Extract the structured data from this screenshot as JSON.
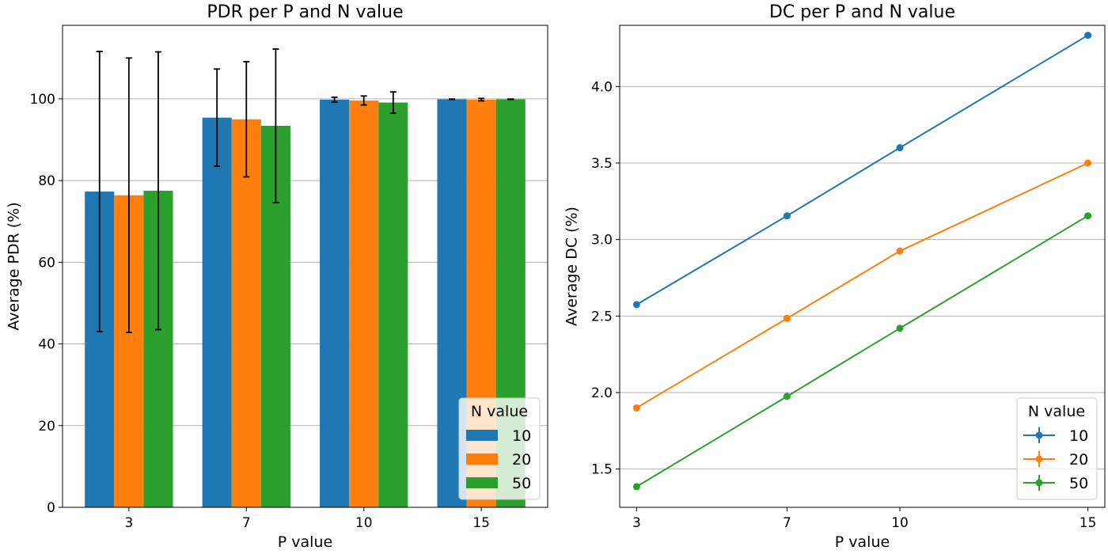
{
  "chart_data": [
    {
      "type": "bar",
      "title": "PDR per P and N value",
      "xlabel": "P value",
      "ylabel": "Average PDR (%)",
      "categories": [
        "3",
        "7",
        "10",
        "15"
      ],
      "ylim": [
        0,
        118
      ],
      "yticks": [
        0,
        20,
        40,
        60,
        80,
        100
      ],
      "grid": "y",
      "legend": {
        "title": "N value",
        "placement": "lower-right"
      },
      "series": [
        {
          "name": "10",
          "color": "#1f77b4",
          "values": [
            77.3,
            95.4,
            99.8,
            99.9
          ],
          "errors": [
            34.3,
            11.9,
            0.6,
            0.05
          ]
        },
        {
          "name": "20",
          "color": "#ff7f0e",
          "values": [
            76.4,
            95.0,
            99.6,
            99.8
          ],
          "errors": [
            33.6,
            14.1,
            1.1,
            0.3
          ]
        },
        {
          "name": "50",
          "color": "#2ca02c",
          "values": [
            77.5,
            93.4,
            99.1,
            99.9
          ],
          "errors": [
            34.0,
            18.8,
            2.6,
            0.05
          ]
        }
      ]
    },
    {
      "type": "line",
      "title": "DC per P and N value",
      "xlabel": "P value",
      "ylabel": "Average DC (%)",
      "x": [
        3,
        7,
        10,
        15
      ],
      "xticks": [
        "3",
        "7",
        "10",
        "15"
      ],
      "xlim": [
        2.55,
        15.45
      ],
      "ylim": [
        1.25,
        4.4
      ],
      "yticks": [
        "1.5",
        "2.0",
        "2.5",
        "3.0",
        "3.5",
        "4.0"
      ],
      "grid": "y",
      "legend": {
        "title": "N value",
        "placement": "lower-right"
      },
      "series": [
        {
          "name": "10",
          "color": "#1f77b4",
          "values": [
            2.575,
            3.155,
            3.6,
            4.335
          ]
        },
        {
          "name": "20",
          "color": "#ff7f0e",
          "values": [
            1.9,
            2.485,
            2.925,
            3.5
          ]
        },
        {
          "name": "50",
          "color": "#2ca02c",
          "values": [
            1.385,
            1.975,
            2.42,
            3.155
          ]
        }
      ]
    }
  ]
}
